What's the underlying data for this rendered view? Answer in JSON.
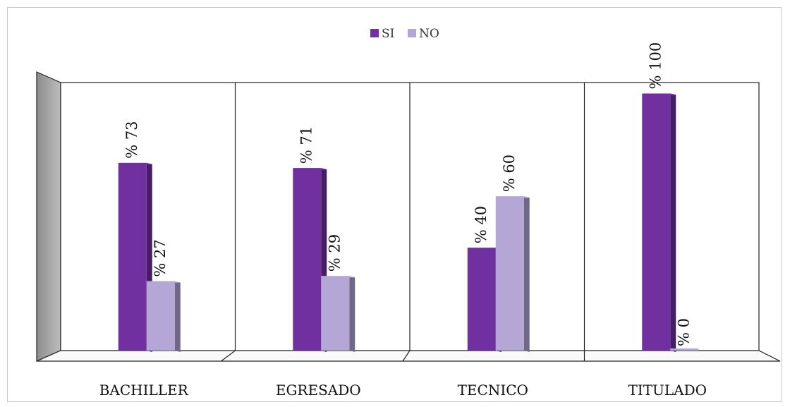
{
  "chart_data": {
    "type": "bar",
    "categories": [
      "BACHILLER",
      "EGRESADO",
      "TECNICO",
      "TITULADO"
    ],
    "series": [
      {
        "name": "SI",
        "values": [
          73,
          71,
          40,
          100
        ],
        "color": "#7030a0"
      },
      {
        "name": "NO",
        "values": [
          27,
          29,
          60,
          0
        ],
        "color": "#b4a7d6"
      }
    ],
    "data_labels": {
      "SI": [
        "% 73",
        "% 71",
        "% 40",
        "% 100"
      ],
      "NO": [
        "% 27",
        "% 29",
        "% 60",
        "% 0"
      ]
    },
    "ylim": [
      0,
      100
    ],
    "grid": "vertical category dividers",
    "legend_position": "top-center",
    "three_d": true
  }
}
